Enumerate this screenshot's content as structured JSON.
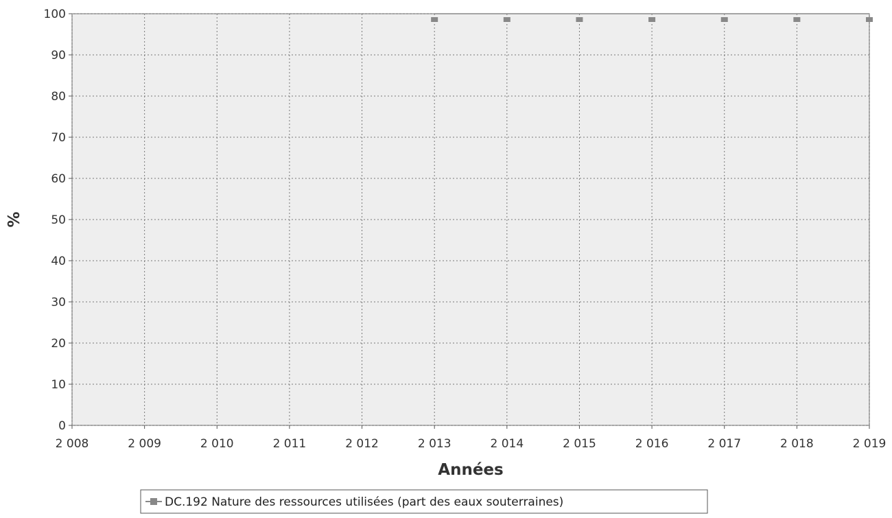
{
  "chart_data": {
    "type": "line",
    "title": "",
    "xlabel": "Années",
    "ylabel": "%",
    "x": [
      2013,
      2014,
      2015,
      2016,
      2017,
      2018,
      2019
    ],
    "series": [
      {
        "name": "DC.192 Nature des ressources utilisées (part des eaux souterraines)",
        "values": [
          100,
          100,
          100,
          100,
          100,
          100,
          100
        ],
        "color": "#888888"
      }
    ],
    "xlim": [
      2008,
      2019
    ],
    "ylim": [
      0,
      100
    ],
    "x_ticks": [
      2008,
      2009,
      2010,
      2011,
      2012,
      2013,
      2014,
      2015,
      2016,
      2017,
      2018,
      2019
    ],
    "x_tick_labels": [
      "2 008",
      "2 009",
      "2 010",
      "2 011",
      "2 012",
      "2 013",
      "2 014",
      "2 015",
      "2 016",
      "2 017",
      "2 018",
      "2 019"
    ],
    "y_ticks": [
      0,
      10,
      20,
      30,
      40,
      50,
      60,
      70,
      80,
      90,
      100
    ],
    "grid": true,
    "legend": "bottom-center",
    "plot_background": "#eeeeee",
    "grid_color": "#777777"
  }
}
